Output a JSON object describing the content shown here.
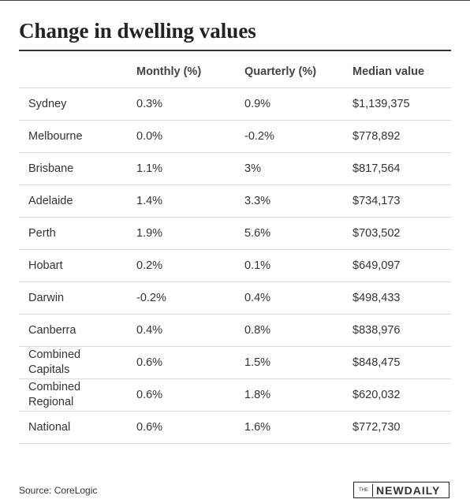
{
  "title": "Change in dwelling values",
  "table": {
    "columns": [
      "Monthly (%)",
      "Quarterly (%)",
      "Median value"
    ],
    "rows": [
      [
        "Sydney",
        "0.3%",
        "0.9%",
        "$1,139,375"
      ],
      [
        "Melbourne",
        "0.0%",
        "-0.2%",
        "$778,892"
      ],
      [
        "Brisbane",
        "1.1%",
        "3%",
        "$817,564"
      ],
      [
        "Adelaide",
        "1.4%",
        "3.3%",
        "$734,173"
      ],
      [
        "Perth",
        "1.9%",
        "5.6%",
        "$703,502"
      ],
      [
        "Hobart",
        "0.2%",
        "0.1%",
        "$649,097"
      ],
      [
        "Darwin",
        "-0.2%",
        "0.4%",
        "$498,433"
      ],
      [
        "Canberra",
        "0.4%",
        "0.8%",
        "$838,976"
      ],
      [
        "Combined Capitals",
        "0.6%",
        "1.5%",
        "$848,475"
      ],
      [
        "Combined Regional",
        "0.6%",
        "1.8%",
        "$620,032"
      ],
      [
        "National",
        "0.6%",
        "1.6%",
        "$772,730"
      ]
    ]
  },
  "source": "Source: CoreLogic",
  "logo": {
    "prefix": "THE",
    "name": "NEWDAILY"
  }
}
